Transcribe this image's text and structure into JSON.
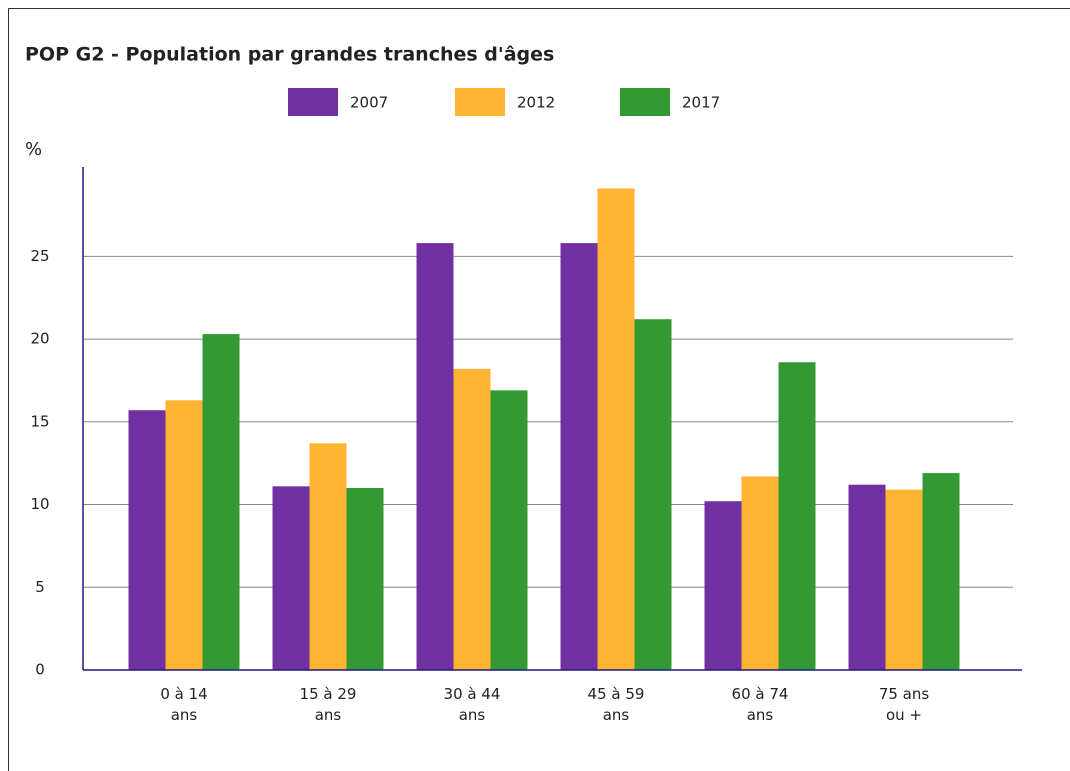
{
  "chart_data": {
    "type": "bar",
    "title": "POP G2 - Population par grandes tranches d'âges",
    "y_label": "%",
    "categories": [
      "0 à 14 ans",
      "15 à 29 ans",
      "30 à 44 ans",
      "45 à 59 ans",
      "60 à 74 ans",
      "75 ans ou +"
    ],
    "series": [
      {
        "name": "2007",
        "color": "#7030a0",
        "values": [
          15.7,
          11.1,
          25.8,
          25.8,
          10.2,
          11.2
        ]
      },
      {
        "name": "2012",
        "color": "#ffb433",
        "values": [
          16.3,
          13.7,
          18.2,
          29.1,
          11.7,
          10.9
        ]
      },
      {
        "name": "2017",
        "color": "#339933",
        "values": [
          20.3,
          11.0,
          16.9,
          21.2,
          18.6,
          11.9
        ]
      }
    ],
    "ylim": [
      0,
      30.4
    ],
    "yticks": [
      0,
      5,
      10,
      15,
      20,
      25
    ],
    "grid": true,
    "legend": "top"
  }
}
